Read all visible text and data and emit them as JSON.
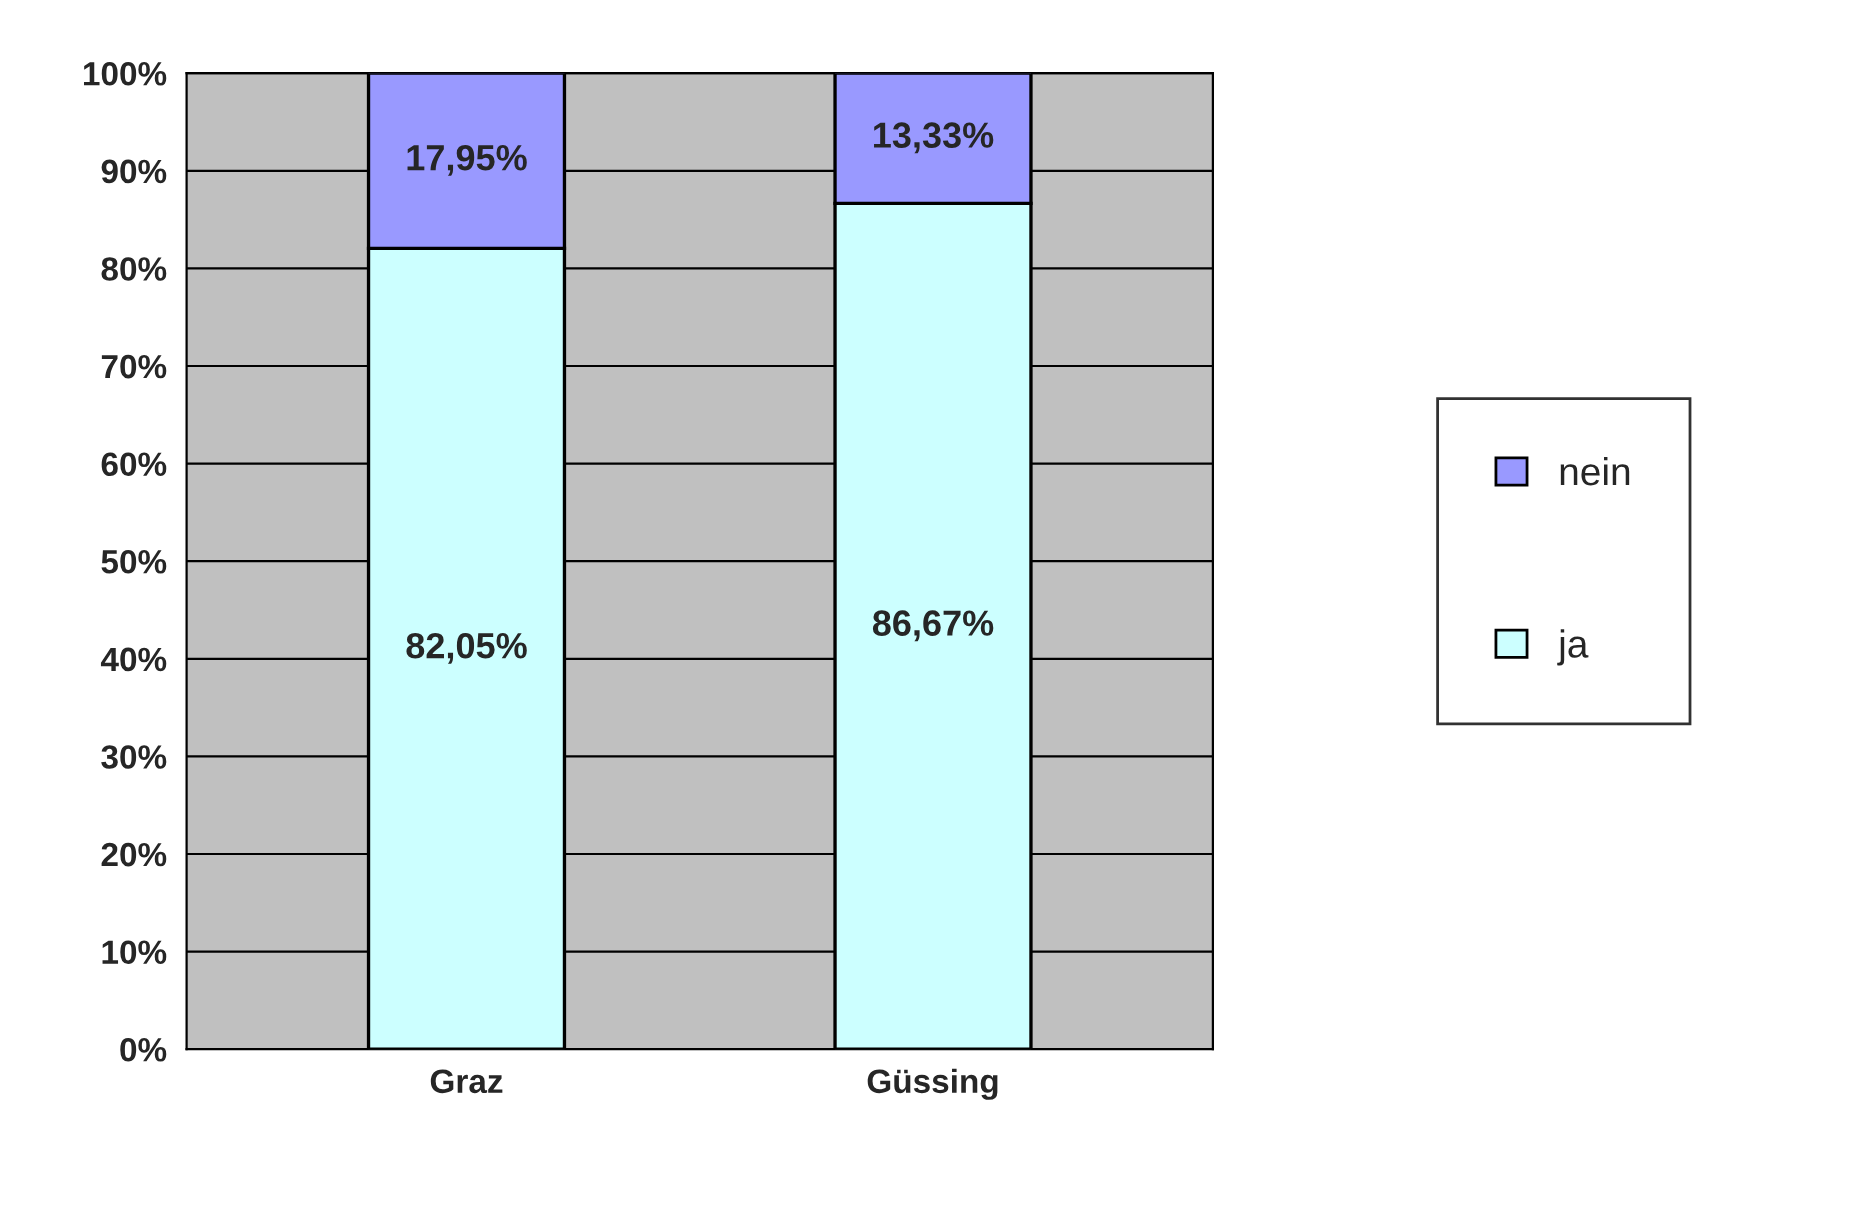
{
  "chart_data": {
    "type": "bar",
    "stacked": true,
    "categories": [
      "Graz",
      "Güssing"
    ],
    "series": [
      {
        "name": "ja",
        "color": "#ccffff",
        "values": [
          82.05,
          86.67
        ],
        "value_labels": [
          "82,05%",
          "86,67%"
        ]
      },
      {
        "name": "nein",
        "color": "#9999ff",
        "values": [
          17.95,
          13.33
        ],
        "value_labels": [
          "17,95%",
          "13,33%"
        ]
      }
    ],
    "ylim": [
      0,
      100
    ],
    "yticks": [
      {
        "value": 0,
        "label": "0%"
      },
      {
        "value": 10,
        "label": "10%"
      },
      {
        "value": 20,
        "label": "20%"
      },
      {
        "value": 30,
        "label": "30%"
      },
      {
        "value": 40,
        "label": "40%"
      },
      {
        "value": 50,
        "label": "50%"
      },
      {
        "value": 60,
        "label": "60%"
      },
      {
        "value": 70,
        "label": "70%"
      },
      {
        "value": 80,
        "label": "80%"
      },
      {
        "value": 90,
        "label": "90%"
      },
      {
        "value": 100,
        "label": "100%"
      }
    ],
    "grid": "y",
    "legend": "right"
  }
}
